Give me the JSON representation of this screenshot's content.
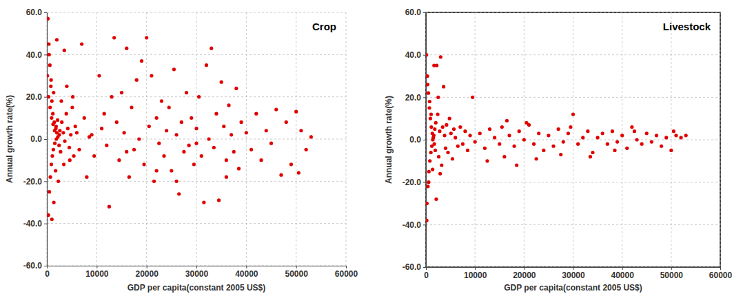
{
  "chart_data": [
    {
      "type": "scatter",
      "title": "Crop",
      "x_label": "GDP per capita(constant 2005 US$)",
      "y_label": "Annual growth rate(%)",
      "color": "#e00000",
      "marker": "circle",
      "grid": true,
      "xlim": [
        0,
        60000
      ],
      "ylim": [
        -60,
        60
      ],
      "xticks": [
        0,
        10000,
        20000,
        30000,
        40000,
        50000,
        60000
      ],
      "yticks": [
        {
          "value": -60,
          "label": "-60.0"
        },
        {
          "value": -40,
          "label": "-40.0"
        },
        {
          "value": -20,
          "label": "-20.0"
        },
        {
          "value": 0,
          "label": "0.0"
        },
        {
          "value": 20,
          "label": "20.0"
        },
        {
          "value": 40,
          "label": "40.0"
        },
        {
          "value": 60,
          "label": "60.0"
        }
      ],
      "x": [
        200,
        400,
        600,
        800,
        1000,
        1200,
        1500,
        1800,
        2000,
        2500,
        300,
        500,
        700,
        900,
        1100,
        1300,
        1600,
        1900,
        2200,
        2600,
        100,
        350,
        650,
        950,
        1250,
        1550,
        1850,
        2150,
        2450,
        2750,
        3000,
        3300,
        3600,
        3900,
        4200,
        4500,
        4800,
        5100,
        5400,
        5700,
        450,
        850,
        1350,
        1750,
        2300,
        2900,
        3400,
        4000,
        4600,
        5200,
        1000,
        1400,
        2000,
        3500,
        6000,
        6500,
        7000,
        7500,
        8000,
        8500,
        9000,
        9500,
        10500,
        11000,
        11500,
        12000,
        12500,
        13000,
        13500,
        14000,
        14500,
        15000,
        15500,
        16000,
        16500,
        17000,
        17500,
        18000,
        18500,
        19000,
        19500,
        20000,
        20500,
        21000,
        21500,
        22000,
        22500,
        23000,
        23500,
        24000,
        24500,
        25000,
        25500,
        26000,
        26500,
        27000,
        27500,
        28000,
        28500,
        29000,
        29500,
        30000,
        30500,
        31000,
        31500,
        32000,
        32500,
        33000,
        33500,
        34000,
        34500,
        35000,
        35500,
        36000,
        36500,
        37000,
        37500,
        38000,
        38500,
        39000,
        40000,
        41000,
        42000,
        43000,
        44000,
        45000,
        46000,
        47000,
        48000,
        49000,
        50000,
        50500,
        51000,
        52000,
        53000,
        16000,
        22000,
        26000,
        30000,
        36000
      ],
      "values": [
        57,
        45,
        35,
        25,
        18,
        12,
        8,
        5,
        3,
        2,
        -36,
        -25,
        -18,
        -12,
        -8,
        -5,
        -2,
        0,
        1,
        4,
        30,
        20,
        15,
        10,
        7,
        4,
        6,
        9,
        -3,
        -6,
        8,
        3,
        -1,
        12,
        5,
        -4,
        2,
        15,
        -8,
        6,
        40,
        28,
        22,
        -15,
        -20,
        18,
        -12,
        25,
        -10,
        20,
        -38,
        -30,
        47,
        42,
        3,
        -5,
        45,
        10,
        -18,
        1,
        2,
        -8,
        30,
        5,
        12,
        -3,
        -32,
        20,
        48,
        8,
        -10,
        22,
        3,
        43,
        -18,
        15,
        -5,
        28,
        0,
        37,
        -12,
        48,
        6,
        30,
        -20,
        10,
        -2,
        18,
        -8,
        4,
        15,
        -15,
        33,
        2,
        -26,
        8,
        -6,
        22,
        -3,
        10,
        -12,
        5,
        20,
        -8,
        -30,
        35,
        0,
        43,
        -4,
        12,
        -29,
        27,
        6,
        -10,
        16,
        2,
        -6,
        24,
        -14,
        8,
        3,
        -5,
        12,
        -10,
        4,
        -2,
        14,
        -17,
        8,
        -12,
        13,
        -16,
        4,
        -5,
        1,
        -6,
        -15,
        -20,
        -2,
        -18
      ]
    },
    {
      "type": "scatter",
      "title": "Livestock",
      "x_label": "GDP per capita(constant 2005 US$)",
      "y_label": "Annual growth rate(%)",
      "color": "#e00000",
      "marker": "circle",
      "grid": true,
      "xlim": [
        0,
        60000
      ],
      "ylim": [
        -60,
        60
      ],
      "xticks": [
        0,
        10000,
        20000,
        30000,
        40000,
        50000,
        60000
      ],
      "yticks": [
        {
          "value": -60,
          "label": "-60.0"
        },
        {
          "value": -40,
          "label": "-40.0"
        },
        {
          "value": -20,
          "label": "-20.0"
        },
        {
          "value": 0,
          "label": "0.0"
        },
        {
          "value": 20,
          "label": "20.0"
        },
        {
          "value": 40,
          "label": "40.0"
        },
        {
          "value": 60,
          "label": "60.0"
        }
      ],
      "x": [
        100,
        300,
        500,
        700,
        900,
        1100,
        1300,
        1500,
        1700,
        1900,
        200,
        400,
        600,
        800,
        1000,
        1200,
        1400,
        1600,
        1800,
        2000,
        2200,
        2400,
        2600,
        2800,
        3000,
        3200,
        3400,
        3600,
        3800,
        4000,
        4200,
        4500,
        4800,
        5100,
        5400,
        5700,
        6000,
        6500,
        7000,
        7500,
        150,
        350,
        550,
        750,
        1050,
        1350,
        1650,
        2100,
        2500,
        2900,
        8000,
        8500,
        9000,
        9500,
        10000,
        11000,
        12000,
        13000,
        14000,
        15000,
        15500,
        16000,
        17000,
        18000,
        19000,
        20000,
        21000,
        22000,
        23000,
        24000,
        25000,
        26000,
        27000,
        28000,
        29000,
        30000,
        31000,
        32000,
        33000,
        34000,
        35000,
        36000,
        37000,
        38000,
        39000,
        40000,
        41000,
        42000,
        43000,
        44000,
        45000,
        46000,
        47000,
        48000,
        49000,
        50000,
        50500,
        51000,
        52000,
        53000,
        12500,
        16500,
        18500,
        20500,
        22500,
        27500,
        29500,
        33500,
        38500,
        42500
      ],
      "values": [
        40,
        30,
        22,
        15,
        10,
        6,
        3,
        1,
        -2,
        -5,
        -30,
        -22,
        -15,
        -10,
        -6,
        -3,
        0,
        2,
        5,
        8,
        35,
        12,
        -8,
        4,
        39,
        -12,
        6,
        25,
        2,
        -4,
        7,
        -6,
        10,
        3,
        -9,
        5,
        1,
        -3,
        6,
        -2,
        -38,
        26,
        -20,
        18,
        12,
        -14,
        35,
        -28,
        20,
        -16,
        4,
        -5,
        2,
        20,
        -1,
        3,
        -4,
        5,
        1,
        -2,
        6,
        -8,
        2,
        -3,
        4,
        0,
        7,
        -2,
        3,
        -5,
        2,
        -3,
        5,
        -1,
        3,
        12,
        -2,
        1,
        4,
        -6,
        1,
        3,
        -2,
        4,
        -1,
        2,
        -4,
        6,
        0,
        -2,
        3,
        -1,
        2,
        -3,
        1,
        -5,
        4,
        2,
        1,
        2,
        -10,
        9,
        -12,
        8,
        -9,
        -7,
        6,
        -8,
        -5,
        4
      ]
    }
  ]
}
